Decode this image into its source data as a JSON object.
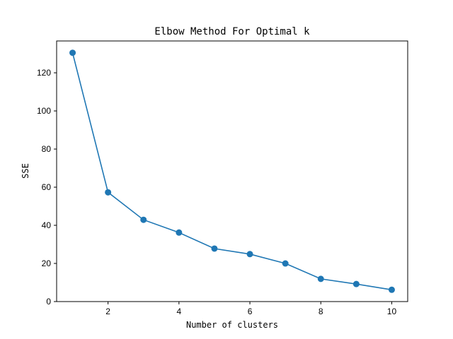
{
  "chart_data": {
    "type": "line",
    "title": "Elbow Method For Optimal k",
    "xlabel": "Number of clusters",
    "ylabel": "SSE",
    "x": [
      1,
      2,
      3,
      4,
      5,
      6,
      7,
      8,
      9,
      10
    ],
    "series": [
      {
        "values": [
          130.5,
          57.3,
          42.9,
          36.2,
          27.8,
          24.9,
          20.0,
          11.9,
          9.2,
          6.2
        ],
        "color": "#1f77b4"
      }
    ],
    "xlim": [
      0.55,
      10.45
    ],
    "ylim": [
      0,
      136.7
    ],
    "xticks": [
      2,
      4,
      6,
      8,
      10
    ],
    "yticks": [
      0,
      20,
      40,
      60,
      80,
      100,
      120
    ],
    "grid": false,
    "marker": "circle"
  }
}
